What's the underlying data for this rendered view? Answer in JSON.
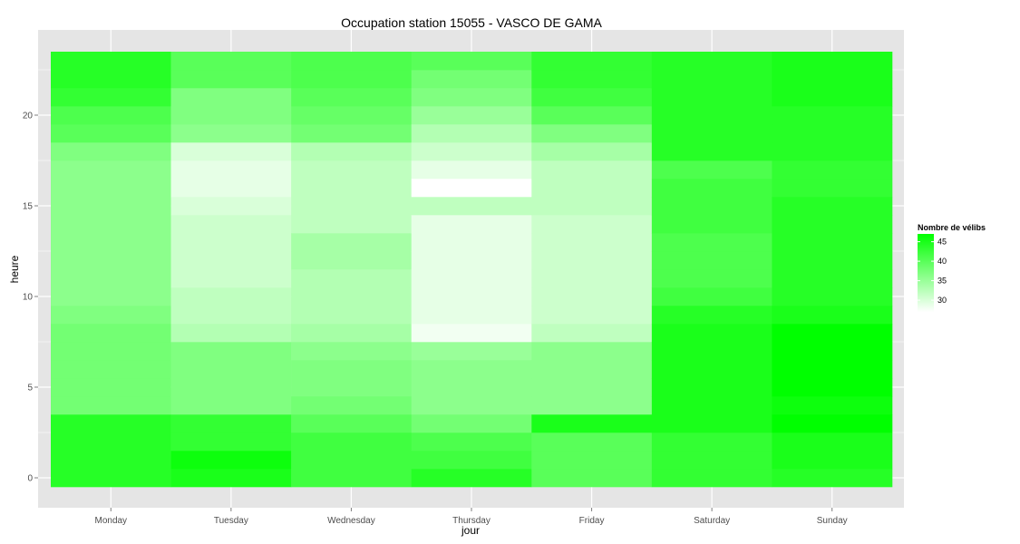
{
  "chart_data": {
    "type": "heatmap",
    "title": "Occupation station 15055 - VASCO DE GAMA",
    "xlabel": "jour",
    "ylabel": "heure",
    "x_categories": [
      "Monday",
      "Tuesday",
      "Wednesday",
      "Thursday",
      "Friday",
      "Saturday",
      "Sunday"
    ],
    "y_hours": [
      0,
      1,
      2,
      3,
      4,
      5,
      6,
      7,
      8,
      9,
      10,
      11,
      12,
      13,
      14,
      15,
      16,
      17,
      18,
      19,
      20,
      21,
      22,
      23
    ],
    "y_ticks": [
      0,
      5,
      10,
      15,
      20
    ],
    "ylim": [
      -0.5,
      23.5
    ],
    "grid": true,
    "legend": {
      "title": "Nombre de vélibs",
      "position": "right",
      "breaks": [
        30,
        35,
        40,
        45
      ],
      "min": 27,
      "max": 47,
      "low_color": "#ffffff",
      "high_color": "#00ff00"
    },
    "values": [
      [
        44,
        44,
        44,
        44,
        38,
        38,
        38,
        38,
        38,
        37,
        36,
        36,
        36,
        36,
        36,
        36,
        36,
        36,
        37,
        40,
        41,
        43,
        44,
        44
      ],
      [
        45,
        46,
        43,
        43,
        37,
        37,
        37,
        37,
        33,
        32,
        32,
        31,
        31,
        31,
        31,
        30,
        29,
        29,
        30,
        36,
        37,
        37,
        40,
        40
      ],
      [
        42,
        42,
        42,
        40,
        38,
        37,
        37,
        36,
        34,
        33,
        33,
        33,
        34,
        34,
        32,
        32,
        32,
        32,
        33,
        38,
        39,
        40,
        41,
        41
      ],
      [
        44,
        42,
        41,
        38,
        36,
        36,
        36,
        35,
        28,
        29,
        29,
        29,
        29,
        29,
        29,
        32,
        27,
        29,
        31,
        33,
        35,
        37,
        38,
        40
      ],
      [
        40,
        40,
        40,
        45,
        36,
        36,
        36,
        36,
        32,
        31,
        31,
        31,
        31,
        31,
        31,
        32,
        32,
        32,
        34,
        37,
        40,
        42,
        43,
        43
      ],
      [
        43,
        43,
        43,
        45,
        45,
        45,
        45,
        45,
        45,
        44,
        42,
        41,
        41,
        41,
        42,
        42,
        42,
        41,
        44,
        44,
        44,
        44,
        44,
        44
      ],
      [
        44,
        45,
        45,
        47,
        46,
        47,
        47,
        47,
        47,
        45,
        44,
        44,
        44,
        44,
        44,
        44,
        43,
        43,
        44,
        44,
        44,
        45,
        45,
        45
      ]
    ]
  }
}
